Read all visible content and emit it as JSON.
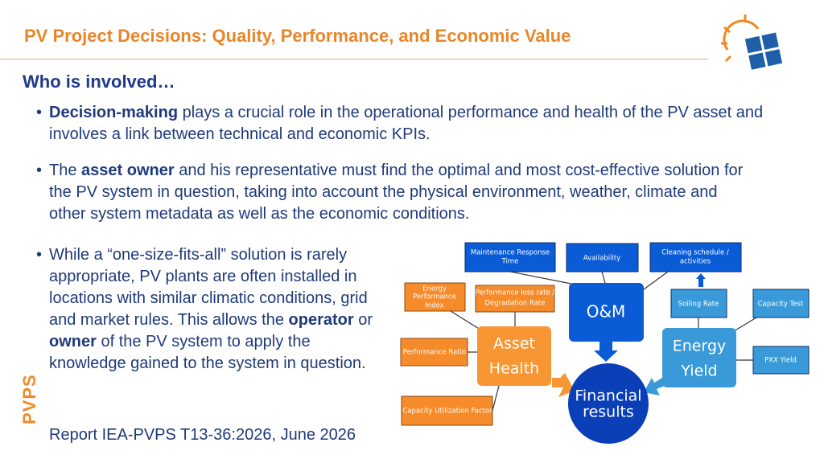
{
  "header": {
    "title": "PV Project Decisions: Quality, Performance, and Economic Value"
  },
  "section": {
    "heading": "Who is involved…"
  },
  "bullets": [
    [
      "Decision-making",
      " plays a crucial role in the operational performance and health of the PV asset and involves a link between technical and economic KPIs."
    ],
    [
      "The ",
      "asset owner",
      " and his representative must find the optimal and most cost-effective solution for the PV system in question, taking into account the physical environment, weather, climate and other system metadata as well as the economic conditions."
    ],
    [
      "While a “one-size-fits-all” solution is rarely appropriate, PV plants are often installed in locations with similar climatic conditions, grid and market rules. This allows the ",
      "operator",
      " or ",
      "owner",
      " of the PV system to apply the knowledge gained to the system in question."
    ]
  ],
  "footer": {
    "logo_text": "PVPS",
    "report": "Report IEA-PVPS T13-36:2026, June 2026"
  },
  "diagram": {
    "nodes": [
      {
        "lines": [
          "Maintenance Response",
          "Time"
        ]
      },
      {
        "lines": [
          "Availability"
        ]
      },
      {
        "lines": [
          "Cleaning   schedule /",
          "activities"
        ]
      },
      {
        "lines": [
          "Energy",
          "Performance",
          "Index"
        ]
      },
      {
        "lines": [
          "Performance loss rate /",
          "Degradation Rate"
        ]
      },
      {
        "lines": [
          "O&M"
        ]
      },
      {
        "lines": [
          "Soiling Rate"
        ]
      },
      {
        "lines": [
          "Capacity Test"
        ]
      },
      {
        "lines": [
          "Performance Ratio"
        ]
      },
      {
        "lines": [
          "Asset",
          "Health"
        ]
      },
      {
        "lines": [
          "Energy",
          "Yield"
        ]
      },
      {
        "lines": [
          "PXX  Yield"
        ]
      },
      {
        "lines": [
          "Financial",
          "results"
        ]
      },
      {
        "lines": [
          "Capacity Utilization Factor"
        ]
      }
    ]
  }
}
